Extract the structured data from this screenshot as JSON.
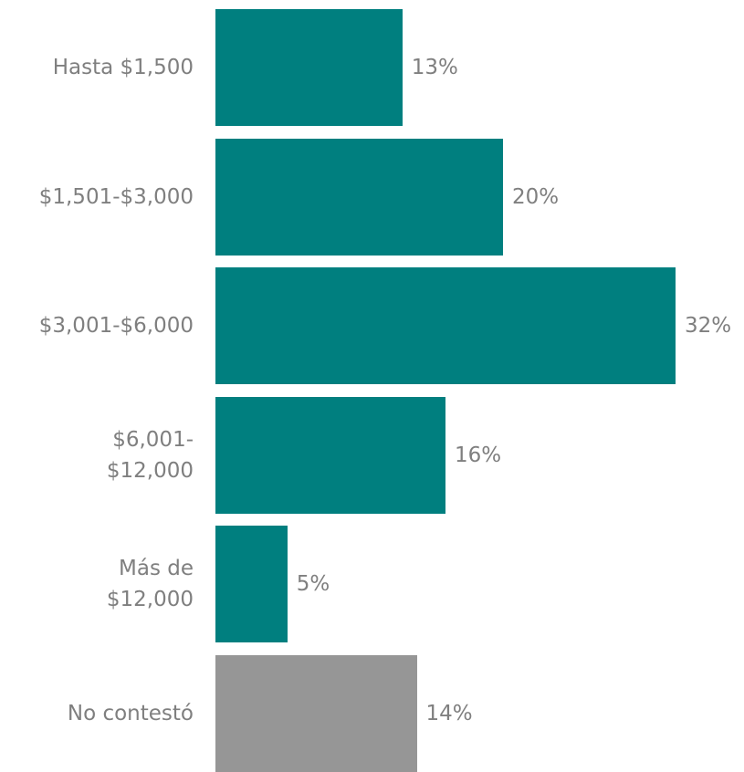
{
  "chart_data": {
    "type": "bar",
    "orientation": "horizontal",
    "categories": [
      "Hasta $1,500",
      "$1,501-$3,000",
      "$3,001-$6,000",
      "$6,001-\n$12,000",
      "Más de\n$12,000",
      "No contestó"
    ],
    "values": [
      13,
      20,
      32,
      16,
      5,
      14
    ],
    "value_labels": [
      "13%",
      "20%",
      "32%",
      "16%",
      "5%",
      "14%"
    ],
    "colors": [
      "#007f7f",
      "#007f7f",
      "#007f7f",
      "#007f7f",
      "#007f7f",
      "#969696"
    ]
  }
}
